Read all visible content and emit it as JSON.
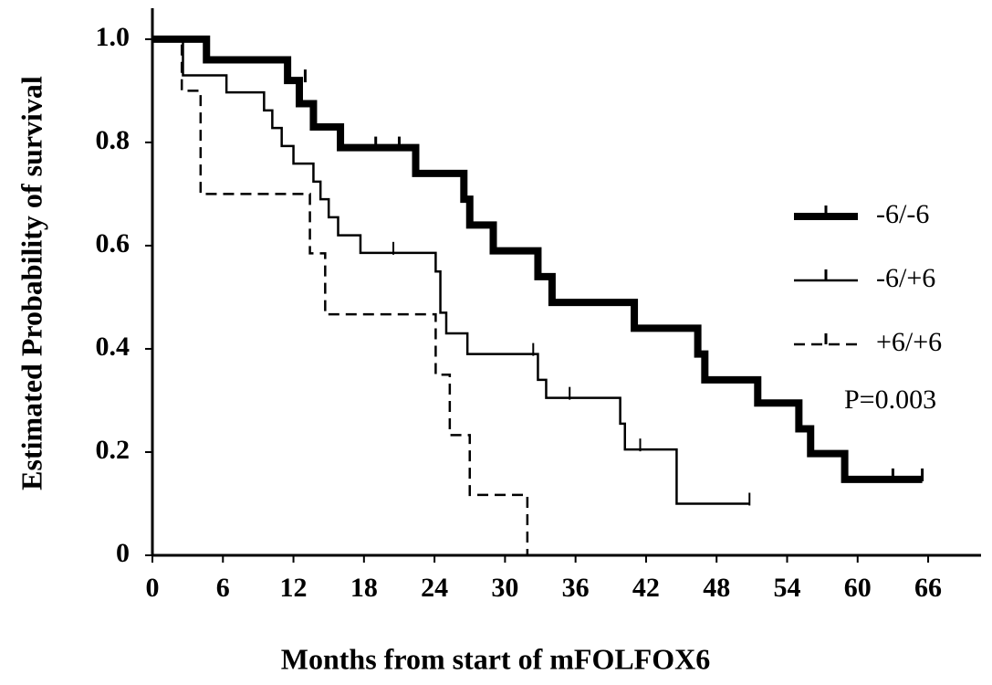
{
  "chart_data": {
    "type": "step",
    "x_label": "Months from start of mFOLFOX6",
    "y_label": "Estimated Probability of survival",
    "annotation": "P=0.003",
    "xlim": [
      0,
      70.5
    ],
    "ylim": [
      0,
      1.06
    ],
    "xticks": [
      0,
      6,
      12,
      18,
      24,
      30,
      36,
      42,
      48,
      54,
      60,
      66
    ],
    "yticks": [
      0,
      0.2,
      0.4,
      0.6,
      0.8,
      {
        "value": 1,
        "label": "1.0"
      }
    ],
    "legend": "right",
    "series": [
      {
        "name": "-6/-6",
        "color": "#000000",
        "style": "thick",
        "x": [
          0,
          4.6,
          11.5,
          12.5,
          13.7,
          16,
          22.4,
          26.5,
          27,
          29,
          32.8,
          34,
          41,
          46.4,
          47,
          51.5,
          55,
          56,
          58.9,
          65.5
        ],
        "values": [
          1,
          0.96,
          0.92,
          0.875,
          0.83,
          0.79,
          0.74,
          0.69,
          0.64,
          0.59,
          0.54,
          0.49,
          0.44,
          0.39,
          0.34,
          0.295,
          0.245,
          0.197,
          0.147,
          0.147
        ],
        "censored": {
          "x": [
            13,
            19,
            21,
            63,
            65.5
          ],
          "values": [
            0.92,
            0.79,
            0.79,
            0.147,
            0.147
          ]
        }
      },
      {
        "name": "-6/+6",
        "color": "#000000",
        "style": "thin",
        "x": [
          0,
          2.6,
          6.3,
          9.5,
          10.2,
          11,
          12,
          13.7,
          14.3,
          15,
          15.8,
          17.7,
          24.1,
          24.5,
          25,
          26.8,
          32.8,
          33.5,
          39.8,
          40.2,
          44.6,
          50.8
        ],
        "values": [
          1,
          0.93,
          0.897,
          0.862,
          0.828,
          0.793,
          0.759,
          0.724,
          0.69,
          0.655,
          0.62,
          0.586,
          0.55,
          0.47,
          0.43,
          0.39,
          0.34,
          0.305,
          0.255,
          0.205,
          0.1,
          0.1
        ],
        "censored": {
          "x": [
            20.5,
            32.4,
            35.5,
            41.5,
            50.8
          ],
          "values": [
            0.586,
            0.39,
            0.305,
            0.205,
            0.1
          ]
        }
      },
      {
        "name": "+6/+6",
        "color": "#000000",
        "style": "dashed",
        "x": [
          0,
          2.5,
          4.1,
          13.4,
          14.7,
          24.1,
          25.3,
          27,
          31.9
        ],
        "values": [
          1,
          0.9,
          0.7,
          0.585,
          0.467,
          0.35,
          0.233,
          0.117,
          0
        ]
      }
    ]
  }
}
